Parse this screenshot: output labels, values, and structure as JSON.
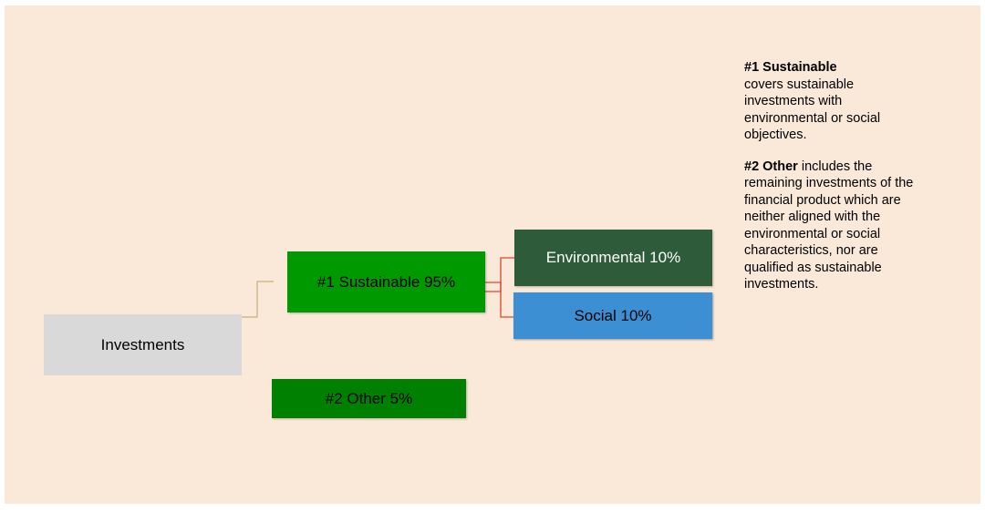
{
  "diagram": {
    "nodes": {
      "investments": "Investments",
      "sustainable": "#1 Sustainable 95%",
      "other": "#2 Other 5%",
      "environmental": "Environmental 10%",
      "social": "Social 10%"
    },
    "colors": {
      "background": "#fae8d9",
      "investments": "#d9d9d9",
      "sustainable": "#009900",
      "other": "#008000",
      "environmental": "#2e5b3a",
      "social": "#3d8fd4",
      "connector_main": "#c9b07a",
      "connector_branch": "#d9472b"
    }
  },
  "notes": {
    "sustainable": {
      "title": "#1 Sustainable",
      "body": "covers sustainable investments with environmental or social objectives."
    },
    "other": {
      "title": "#2 Other",
      "body": " includes the remaining investments of the financial product which are neither aligned with the environmental or social characteristics, nor are qualified as sustainable investments."
    }
  }
}
